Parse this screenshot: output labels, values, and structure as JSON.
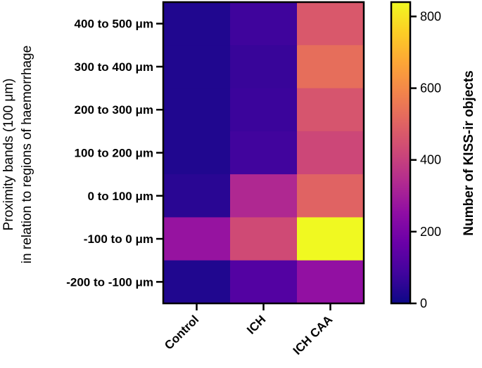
{
  "chart_data": {
    "type": "heatmap",
    "x_categories": [
      "Control",
      "ICH",
      "ICH CAA"
    ],
    "y_categories": [
      "400 to 500 μm",
      "300 to 400 μm",
      "200 to 300 μm",
      "100 to 200 μm",
      "0 to 100 μm",
      "-100 to 0 μm",
      "-200 to -100 μm"
    ],
    "values": [
      [
        30,
        80,
        470
      ],
      [
        30,
        70,
        530
      ],
      [
        30,
        75,
        460
      ],
      [
        30,
        85,
        420
      ],
      [
        45,
        330,
        500
      ],
      [
        270,
        430,
        840
      ],
      [
        30,
        120,
        260
      ]
    ],
    "ylabel_line1": "Proximity bands (100 μm)",
    "ylabel_line2": "in relation to regions of haemorrhage",
    "colorbar": {
      "label": "Number of KISS-ir objects",
      "range": [
        0,
        840
      ],
      "ticks": [
        0,
        200,
        400,
        600,
        800
      ],
      "colormap": "plasma"
    }
  }
}
